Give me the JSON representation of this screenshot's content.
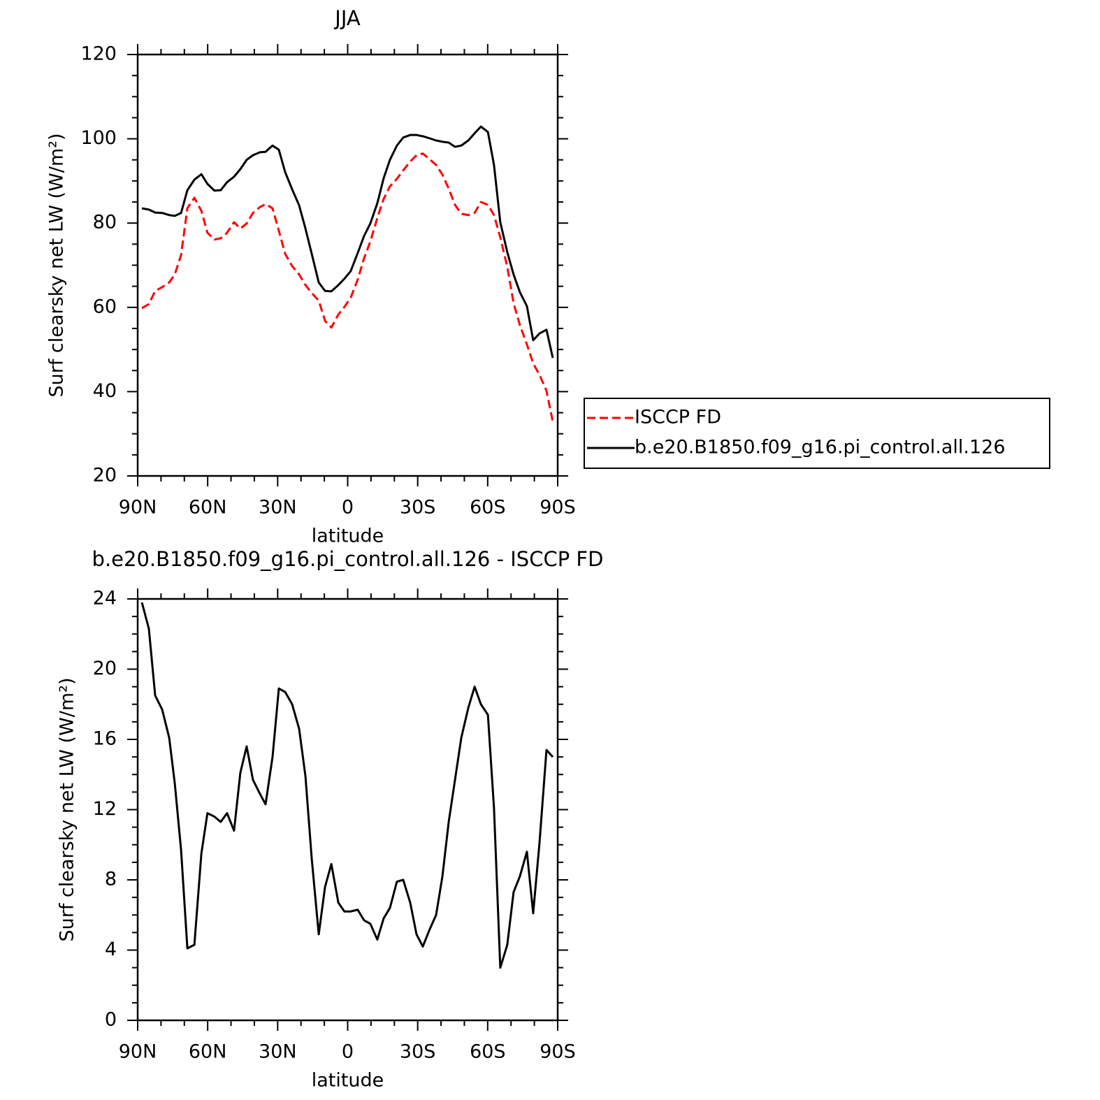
{
  "chart_data": [
    {
      "type": "line",
      "title": "JJA",
      "xlabel": "latitude",
      "ylabel": "Surf clearsky net LW (W/m²)",
      "x": [
        88.2,
        85.2,
        82.5,
        79.5,
        76.5,
        74.1,
        71.4,
        68.7,
        65.7,
        62.7,
        60.1,
        57.1,
        54.4,
        51.7,
        48.7,
        46.0,
        43.3,
        40.6,
        37.6,
        35.2,
        32.2,
        29.5,
        26.8,
        23.8,
        20.8,
        18.1,
        15.4,
        12.4,
        9.7,
        7.0,
        4.0,
        1.4,
        -1.3,
        -4.3,
        -7.0,
        -9.7,
        -12.7,
        -15.4,
        -18.1,
        -21.1,
        -23.8,
        -26.8,
        -29.5,
        -32.2,
        -35.2,
        -37.9,
        -40.6,
        -43.3,
        -46.0,
        -48.7,
        -51.7,
        -54.4,
        -57.1,
        -60.1,
        -62.7,
        -65.4,
        -68.4,
        -71.1,
        -73.8,
        -76.8,
        -79.5,
        -82.2,
        -85.2,
        -87.9
      ],
      "series": [
        {
          "name": "ISCCP FD",
          "color": "#ff0000",
          "style": "dashed",
          "values": [
            59.8,
            60.8,
            63.9,
            64.8,
            65.9,
            67.8,
            72.4,
            83.5,
            86.0,
            82.9,
            77.7,
            76.1,
            76.4,
            77.7,
            80.2,
            78.7,
            79.9,
            82.4,
            83.8,
            84.5,
            83.5,
            78.2,
            72.7,
            69.8,
            67.8,
            65.3,
            63.4,
            61.6,
            56.8,
            55.2,
            58.3,
            60.1,
            62.3,
            66.6,
            71.6,
            75.6,
            81.2,
            85.7,
            88.7,
            90.5,
            92.5,
            94.6,
            96.1,
            96.5,
            95.1,
            93.8,
            91.5,
            88.2,
            84.3,
            82.2,
            81.9,
            82.4,
            85.0,
            84.3,
            81.9,
            76.6,
            69.6,
            61.0,
            55.8,
            51.2,
            46.7,
            44.0,
            40.2,
            32.9
          ]
        },
        {
          "name": "b.e20.B1850.f09_g16.pi_control.all.126",
          "color": "#000000",
          "style": "solid",
          "values": [
            83.5,
            83.2,
            82.5,
            82.4,
            81.9,
            81.7,
            82.4,
            87.8,
            90.3,
            91.6,
            89.3,
            87.7,
            87.8,
            89.7,
            91.0,
            92.8,
            95.0,
            96.1,
            96.8,
            96.9,
            98.4,
            97.4,
            92.1,
            88.0,
            84.2,
            78.7,
            72.7,
            65.9,
            63.9,
            63.8,
            65.3,
            66.8,
            68.6,
            72.9,
            76.9,
            79.9,
            84.7,
            90.6,
            95.0,
            98.4,
            100.3,
            100.9,
            100.9,
            100.6,
            100.1,
            99.6,
            99.3,
            99.1,
            98.1,
            98.4,
            99.6,
            101.3,
            102.9,
            101.6,
            93.8,
            80.2,
            73.1,
            67.8,
            63.6,
            60.3,
            52.2,
            53.8,
            54.7,
            48.0
          ]
        }
      ],
      "xlim": [
        90,
        -90
      ],
      "xticks": [
        {
          "value": 90,
          "label": "90N"
        },
        {
          "value": 60,
          "label": "60N"
        },
        {
          "value": 30,
          "label": "30N"
        },
        0,
        {
          "value": -30,
          "label": "30S"
        },
        {
          "value": -60,
          "label": "60S"
        },
        {
          "value": -90,
          "label": "90S"
        }
      ],
      "ylim": [
        20,
        120
      ],
      "yticks": [
        20,
        40,
        60,
        80,
        100,
        120
      ],
      "legend": "right"
    },
    {
      "type": "line",
      "title": "b.e20.B1850.f09_g16.pi_control.all.126 - ISCCP FD",
      "xlabel": "latitude",
      "ylabel": "Surf clearsky net LW (W/m²)",
      "x": [
        88.2,
        85.2,
        82.5,
        79.5,
        76.5,
        74.1,
        71.4,
        68.7,
        65.7,
        62.7,
        60.1,
        57.1,
        54.4,
        51.7,
        48.7,
        46.0,
        43.3,
        40.6,
        37.6,
        35.2,
        32.2,
        29.5,
        26.8,
        23.8,
        20.8,
        18.1,
        15.4,
        12.4,
        9.7,
        7.0,
        4.0,
        1.4,
        -1.3,
        -4.3,
        -7.0,
        -9.7,
        -12.7,
        -15.4,
        -18.1,
        -21.1,
        -23.8,
        -26.8,
        -29.5,
        -32.2,
        -35.2,
        -37.9,
        -40.6,
        -43.3,
        -46.0,
        -48.7,
        -51.7,
        -54.4,
        -57.1,
        -60.1,
        -62.7,
        -65.4,
        -68.4,
        -71.1,
        -73.8,
        -76.8,
        -79.5,
        -82.2,
        -85.2,
        -87.9
      ],
      "series": [
        {
          "color": "#000000",
          "style": "solid",
          "values": [
            23.8,
            22.3,
            18.5,
            17.7,
            16.1,
            13.5,
            9.7,
            4.1,
            4.3,
            9.5,
            11.8,
            11.6,
            11.3,
            11.8,
            10.8,
            14.1,
            15.6,
            13.7,
            12.9,
            12.3,
            15.0,
            18.9,
            18.7,
            18.0,
            16.6,
            13.9,
            9.2,
            4.9,
            7.6,
            8.9,
            6.7,
            6.2,
            6.2,
            6.3,
            5.7,
            5.5,
            4.6,
            5.8,
            6.4,
            7.9,
            8.0,
            6.7,
            4.9,
            4.2,
            5.2,
            6.0,
            8.2,
            11.3,
            13.7,
            16.1,
            17.8,
            19.0,
            18.0,
            17.4,
            12.1,
            3.0,
            4.3,
            7.3,
            8.2,
            9.6,
            6.1,
            10.1,
            15.4,
            15.0
          ]
        }
      ],
      "xlim": [
        90,
        -90
      ],
      "xticks": [
        {
          "value": 90,
          "label": "90N"
        },
        {
          "value": 60,
          "label": "60N"
        },
        {
          "value": 30,
          "label": "30N"
        },
        0,
        {
          "value": -30,
          "label": "30S"
        },
        {
          "value": -60,
          "label": "60S"
        },
        {
          "value": -90,
          "label": "90S"
        }
      ],
      "ylim": [
        0,
        24
      ],
      "yticks": [
        0,
        4,
        8,
        12,
        16,
        20,
        24
      ]
    }
  ]
}
